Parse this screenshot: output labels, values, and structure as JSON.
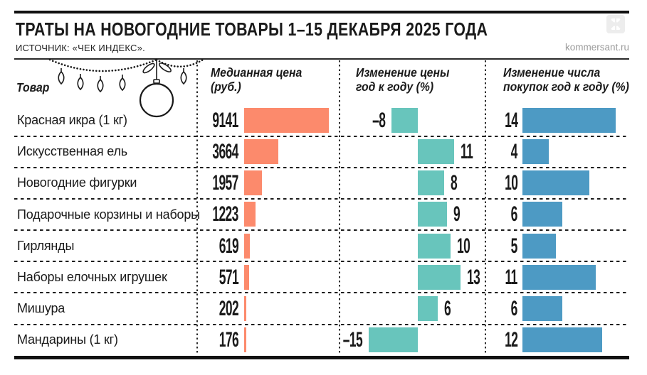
{
  "header": {
    "title": "ТРАТЫ НА НОВОГОДНИЕ ТОВАРЫ 1–15 ДЕКАБРЯ 2025 ГОДА",
    "source": "ИСТОЧНИК: «ЧЕК ИНДЕКС».",
    "site": "kommersant.ru"
  },
  "columns": {
    "product": "Товар",
    "price_line1": "Медианная цена",
    "price_line2": "(руб.)",
    "change_line1": "Изменение цены",
    "change_line2": "год к году (%)",
    "purchases_line1": "Изменение числа",
    "purchases_line2": "покупок год к году (%)"
  },
  "colors": {
    "price_bar": "#FC8A6C",
    "price_change_bar": "#68C5BC",
    "purchases_bar": "#4D9AC4",
    "text": "#1a1a1a",
    "muted": "#9b9b9b"
  },
  "chart_data": {
    "type": "bar",
    "orientation": "horizontal",
    "title": "ТРАТЫ НА НОВОГОДНИЕ ТОВАРЫ 1–15 ДЕКАБРЯ 2025 ГОДА",
    "subtitle": "ИСТОЧНИК: «ЧЕК ИНДЕКС».",
    "categories": [
      "Красная икра (1 кг)",
      "Искусственная ель",
      "Новогодние фигурки",
      "Подарочные корзины и наборы",
      "Гирлянды",
      "Наборы елочных игрушек",
      "Мишура",
      "Мандарины (1 кг)"
    ],
    "series": [
      {
        "name": "Медианная цена (руб.)",
        "values": [
          9141,
          3664,
          1957,
          1223,
          619,
          571,
          202,
          176
        ]
      },
      {
        "name": "Изменение цены год к году (%)",
        "values": [
          -8,
          11,
          8,
          9,
          10,
          13,
          6,
          -15
        ]
      },
      {
        "name": "Изменение числа покупок год к году (%)",
        "values": [
          14,
          4,
          10,
          6,
          5,
          11,
          6,
          12
        ]
      }
    ],
    "legend": "none",
    "grid": "dashed row separators, dotted column separators"
  }
}
